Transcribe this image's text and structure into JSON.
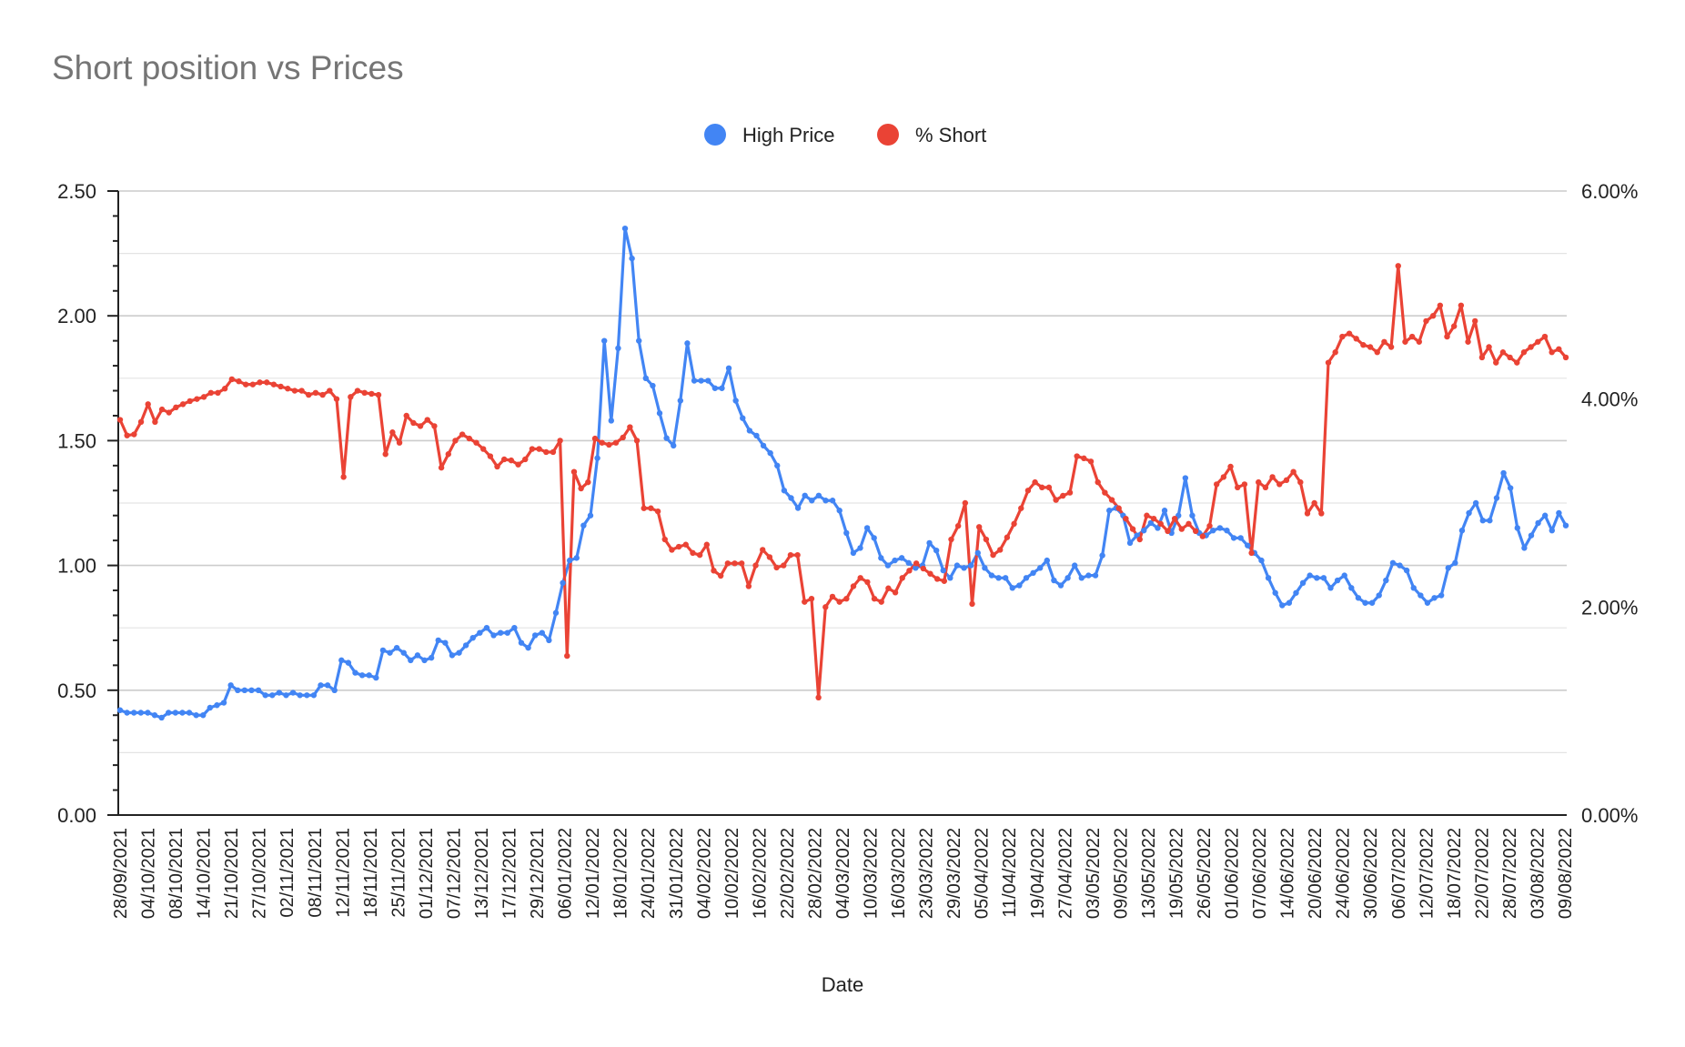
{
  "chart_data": {
    "type": "line",
    "title": "Short position vs Prices",
    "xlabel": "Date",
    "ylabel_left": "",
    "ylabel_right": "",
    "legend_position": "top-center",
    "grid": true,
    "left_axis": {
      "range": [
        0,
        2.5
      ],
      "ticks": [
        0,
        0.5,
        1.0,
        1.5,
        2.0,
        2.5
      ],
      "tick_labels": [
        "0.00",
        "0.50",
        "1.00",
        "1.50",
        "2.00",
        "2.50"
      ]
    },
    "right_axis": {
      "range": [
        0,
        0.06
      ],
      "ticks": [
        0,
        0.02,
        0.04,
        0.06
      ],
      "tick_labels": [
        "0.00%",
        "2.00%",
        "4.00%",
        "6.00%"
      ]
    },
    "x_tick_labels": [
      "28/09/2021",
      "04/10/2021",
      "08/10/2021",
      "14/10/2021",
      "21/10/2021",
      "27/10/2021",
      "02/11/2021",
      "08/11/2021",
      "12/11/2021",
      "18/11/2021",
      "25/11/2021",
      "01/12/2021",
      "07/12/2021",
      "13/12/2021",
      "17/12/2021",
      "29/12/2021",
      "06/01/2022",
      "12/01/2022",
      "18/01/2022",
      "24/01/2022",
      "31/01/2022",
      "04/02/2022",
      "10/02/2022",
      "16/02/2022",
      "22/02/2022",
      "28/02/2022",
      "04/03/2022",
      "10/03/2022",
      "16/03/2022",
      "23/03/2022",
      "29/03/2022",
      "05/04/2022",
      "11/04/2022",
      "19/04/2022",
      "27/04/2022",
      "03/05/2022",
      "09/05/2022",
      "13/05/2022",
      "19/05/2022",
      "26/05/2022",
      "01/06/2022",
      "07/06/2022",
      "14/06/2022",
      "20/06/2022",
      "24/06/2022",
      "30/06/2022",
      "06/07/2022",
      "12/07/2022",
      "18/07/2022",
      "22/07/2022",
      "28/07/2022",
      "03/08/2022",
      "09/08/2022"
    ],
    "series": [
      {
        "name": "High Price",
        "axis": "left",
        "color": "#4285f4",
        "values": [
          0.42,
          0.41,
          0.41,
          0.41,
          0.41,
          0.4,
          0.39,
          0.41,
          0.41,
          0.41,
          0.41,
          0.4,
          0.4,
          0.43,
          0.44,
          0.45,
          0.52,
          0.5,
          0.5,
          0.5,
          0.5,
          0.48,
          0.48,
          0.49,
          0.48,
          0.49,
          0.48,
          0.48,
          0.48,
          0.52,
          0.52,
          0.5,
          0.62,
          0.61,
          0.57,
          0.56,
          0.56,
          0.55,
          0.66,
          0.65,
          0.67,
          0.65,
          0.62,
          0.64,
          0.62,
          0.63,
          0.7,
          0.69,
          0.64,
          0.65,
          0.68,
          0.71,
          0.73,
          0.75,
          0.72,
          0.73,
          0.73,
          0.75,
          0.69,
          0.67,
          0.72,
          0.73,
          0.7,
          0.81,
          0.93,
          1.02,
          1.03,
          1.16,
          1.2,
          1.43,
          1.9,
          1.58,
          1.87,
          2.35,
          2.23,
          1.9,
          1.75,
          1.72,
          1.61,
          1.51,
          1.48,
          1.66,
          1.89,
          1.74,
          1.74,
          1.74,
          1.71,
          1.71,
          1.79,
          1.66,
          1.59,
          1.54,
          1.52,
          1.48,
          1.45,
          1.4,
          1.3,
          1.27,
          1.23,
          1.28,
          1.26,
          1.28,
          1.26,
          1.26,
          1.22,
          1.13,
          1.05,
          1.07,
          1.15,
          1.11,
          1.03,
          1.0,
          1.02,
          1.03,
          1.01,
          0.99,
          1.0,
          1.09,
          1.06,
          0.98,
          0.95,
          1.0,
          0.99,
          1.0,
          1.05,
          0.99,
          0.96,
          0.95,
          0.95,
          0.91,
          0.92,
          0.95,
          0.97,
          0.99,
          1.02,
          0.94,
          0.92,
          0.95,
          1.0,
          0.95,
          0.96,
          0.96,
          1.04,
          1.22,
          1.23,
          1.2,
          1.09,
          1.12,
          1.14,
          1.17,
          1.15,
          1.22,
          1.13,
          1.2,
          1.35,
          1.2,
          1.13,
          1.12,
          1.14,
          1.15,
          1.14,
          1.11,
          1.11,
          1.08,
          1.05,
          1.02,
          0.95,
          0.89,
          0.84,
          0.85,
          0.89,
          0.93,
          0.96,
          0.95,
          0.95,
          0.91,
          0.94,
          0.96,
          0.91,
          0.87,
          0.85,
          0.85,
          0.88,
          0.94,
          1.01,
          1.0,
          0.98,
          0.91,
          0.88,
          0.85,
          0.87,
          0.88,
          0.99,
          1.01,
          1.14,
          1.21,
          1.25,
          1.18,
          1.18,
          1.27,
          1.37,
          1.31,
          1.15,
          1.07,
          1.12,
          1.17,
          1.2,
          1.14,
          1.21,
          1.16
        ]
      },
      {
        "name": "% Short",
        "axis": "right",
        "color": "#ea4335",
        "values": [
          0.038,
          0.0365,
          0.0366,
          0.0378,
          0.0395,
          0.0378,
          0.039,
          0.0387,
          0.0392,
          0.0395,
          0.0398,
          0.04,
          0.0402,
          0.0406,
          0.0406,
          0.041,
          0.0419,
          0.0417,
          0.0414,
          0.0414,
          0.0416,
          0.0416,
          0.0414,
          0.0412,
          0.041,
          0.0408,
          0.0408,
          0.0404,
          0.0406,
          0.0404,
          0.0408,
          0.04,
          0.0325,
          0.0402,
          0.0408,
          0.0406,
          0.0405,
          0.0404,
          0.0347,
          0.0368,
          0.0358,
          0.0384,
          0.0377,
          0.0374,
          0.038,
          0.0374,
          0.0334,
          0.0347,
          0.036,
          0.0366,
          0.0362,
          0.0358,
          0.0352,
          0.0345,
          0.0335,
          0.0342,
          0.0341,
          0.0337,
          0.0342,
          0.0352,
          0.0352,
          0.0349,
          0.0349,
          0.036,
          0.0153,
          0.033,
          0.0314,
          0.032,
          0.0362,
          0.0358,
          0.0356,
          0.0358,
          0.0363,
          0.0373,
          0.036,
          0.0295,
          0.0295,
          0.0292,
          0.0265,
          0.0255,
          0.0258,
          0.026,
          0.0252,
          0.025,
          0.026,
          0.0235,
          0.023,
          0.0242,
          0.0242,
          0.0242,
          0.022,
          0.024,
          0.0255,
          0.0248,
          0.0238,
          0.024,
          0.025,
          0.025,
          0.0205,
          0.0208,
          0.0113,
          0.02,
          0.021,
          0.0205,
          0.0208,
          0.022,
          0.0228,
          0.0224,
          0.0208,
          0.0205,
          0.0218,
          0.0214,
          0.0228,
          0.0235,
          0.0242,
          0.0237,
          0.0232,
          0.0227,
          0.0225,
          0.0265,
          0.0278,
          0.03,
          0.0203,
          0.0277,
          0.0265,
          0.025,
          0.0255,
          0.0267,
          0.028,
          0.0295,
          0.0312,
          0.032,
          0.0315,
          0.0315,
          0.0303,
          0.0307,
          0.031,
          0.0345,
          0.0343,
          0.034,
          0.032,
          0.031,
          0.0303,
          0.0295,
          0.0285,
          0.0275,
          0.0265,
          0.0288,
          0.0285,
          0.028,
          0.0273,
          0.0285,
          0.0275,
          0.028,
          0.0273,
          0.0268,
          0.0278,
          0.0318,
          0.0325,
          0.0335,
          0.0315,
          0.0318,
          0.0252,
          0.032,
          0.0315,
          0.0325,
          0.0318,
          0.0322,
          0.033,
          0.032,
          0.029,
          0.03,
          0.029,
          0.0435,
          0.0445,
          0.046,
          0.0463,
          0.0458,
          0.0452,
          0.045,
          0.0445,
          0.0455,
          0.045,
          0.0528,
          0.0455,
          0.046,
          0.0455,
          0.0475,
          0.048,
          0.049,
          0.046,
          0.047,
          0.049,
          0.0455,
          0.0475,
          0.044,
          0.045,
          0.0435,
          0.0445,
          0.044,
          0.0435,
          0.0445,
          0.045,
          0.0455,
          0.046,
          0.0445,
          0.0448,
          0.044
        ]
      }
    ]
  }
}
